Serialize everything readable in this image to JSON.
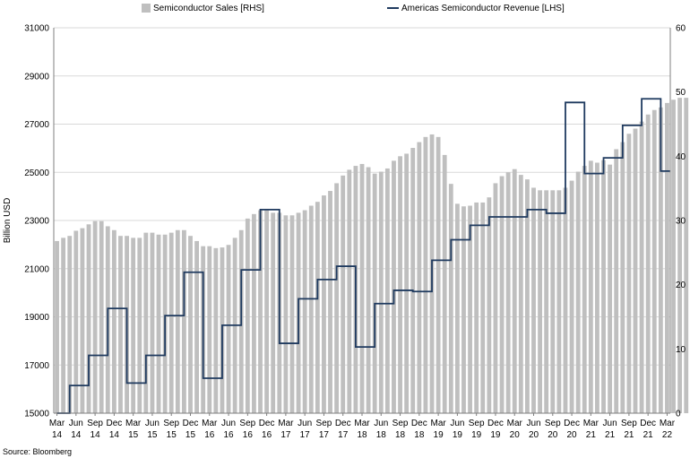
{
  "chart_data": {
    "type": "bar+line",
    "title": "",
    "legend_position": "top",
    "grid": true,
    "ylabel_left": "Billion USD",
    "source": "Source: Bloomberg",
    "left_axis": {
      "min": 15000,
      "max": 31000,
      "ticks": [
        "15000",
        "17000",
        "19000",
        "21000",
        "23000",
        "25000",
        "27000",
        "29000",
        "31000"
      ]
    },
    "right_axis": {
      "min": 0,
      "max": 60,
      "ticks": [
        "0",
        "10",
        "20",
        "30",
        "40",
        "50",
        "60"
      ]
    },
    "x_ticks": [
      [
        "Mar",
        "14"
      ],
      [
        "Jun",
        "14"
      ],
      [
        "Sep",
        "14"
      ],
      [
        "Dec",
        "14"
      ],
      [
        "Mar",
        "15"
      ],
      [
        "Jun",
        "15"
      ],
      [
        "Sep",
        "15"
      ],
      [
        "Dec",
        "15"
      ],
      [
        "Mar",
        "16"
      ],
      [
        "Jun",
        "16"
      ],
      [
        "Sep",
        "16"
      ],
      [
        "Dec",
        "16"
      ],
      [
        "Mar",
        "17"
      ],
      [
        "Jun",
        "17"
      ],
      [
        "Sep",
        "17"
      ],
      [
        "Dec",
        "17"
      ],
      [
        "Mar",
        "18"
      ],
      [
        "Jun",
        "18"
      ],
      [
        "Sep",
        "18"
      ],
      [
        "Dec",
        "18"
      ],
      [
        "Mar",
        "19"
      ],
      [
        "Jun",
        "19"
      ],
      [
        "Sep",
        "19"
      ],
      [
        "Dec",
        "19"
      ],
      [
        "Mar",
        "20"
      ],
      [
        "Jun",
        "20"
      ],
      [
        "Sep",
        "20"
      ],
      [
        "Dec",
        "20"
      ],
      [
        "Mar",
        "21"
      ],
      [
        "Jun",
        "21"
      ],
      [
        "Sep",
        "21"
      ],
      [
        "Dec",
        "21"
      ],
      [
        "Mar",
        "22"
      ]
    ],
    "series": [
      {
        "name": "Semiconductor Sales [RHS]",
        "type": "bar",
        "axis": "right",
        "color": "#bfbfbf",
        "start": "2014-03",
        "frequency": "monthly",
        "values": [
          26.8,
          27.3,
          27.6,
          28.4,
          28.8,
          29.4,
          29.9,
          29.9,
          29.1,
          28.5,
          27.6,
          27.6,
          27.3,
          27.3,
          28.1,
          28.1,
          27.8,
          27.8,
          28.1,
          28.5,
          28.5,
          27.6,
          26.8,
          26.0,
          26.0,
          25.7,
          25.8,
          26.2,
          27.3,
          28.5,
          30.3,
          31.0,
          31.6,
          31.6,
          31.2,
          31.2,
          30.8,
          30.8,
          31.2,
          31.6,
          32.3,
          32.9,
          33.9,
          34.6,
          35.8,
          37.0,
          37.9,
          38.5,
          38.8,
          38.3,
          37.3,
          37.6,
          38.1,
          39.3,
          40.0,
          40.4,
          41.3,
          42.2,
          43.0,
          43.4,
          43.0,
          40.2,
          35.7,
          32.6,
          32.2,
          32.3,
          32.8,
          32.8,
          33.6,
          35.8,
          36.9,
          37.5,
          38.0,
          37.1,
          36.4,
          35.1,
          34.7,
          34.7,
          34.7,
          34.7,
          35.1,
          36.2,
          37.6,
          38.5,
          39.3,
          39.0,
          39.4,
          38.7,
          41.1,
          42.2,
          43.5,
          44.3,
          45.4,
          46.5,
          47.2,
          47.6,
          48.3,
          48.8,
          49.1,
          49.1,
          48.3,
          48.8
        ],
        "last_date": "2022-02"
      },
      {
        "name": "Americas Semiconductor Revenue [LHS]",
        "type": "line",
        "axis": "left",
        "color": "#1f3a5f",
        "x": [
          "2014-03",
          "2014-06",
          "2014-09",
          "2014-12",
          "2015-03",
          "2015-06",
          "2015-09",
          "2015-12",
          "2016-03",
          "2016-06",
          "2016-09",
          "2016-12",
          "2017-03",
          "2017-06",
          "2017-09",
          "2017-12",
          "2018-03",
          "2018-06",
          "2018-09",
          "2018-12",
          "2019-03",
          "2019-06",
          "2019-09",
          "2019-12",
          "2020-03",
          "2020-06",
          "2020-09",
          "2020-12",
          "2021-03",
          "2021-06",
          "2021-09",
          "2021-12",
          "2022-03"
        ],
        "values": [
          15000,
          16150,
          17400,
          19350,
          16250,
          17400,
          19050,
          20850,
          16450,
          18650,
          20950,
          23450,
          17900,
          19750,
          20550,
          21100,
          17750,
          19550,
          20100,
          20050,
          21350,
          22200,
          22800,
          23150,
          23150,
          23450,
          23300,
          27900,
          24950,
          25600,
          26950,
          28050,
          25050
        ]
      }
    ]
  },
  "legend": {
    "sales_label": "Semiconductor Sales [RHS]",
    "revenue_label": "Americas Semiconductor Revenue [LHS]"
  }
}
